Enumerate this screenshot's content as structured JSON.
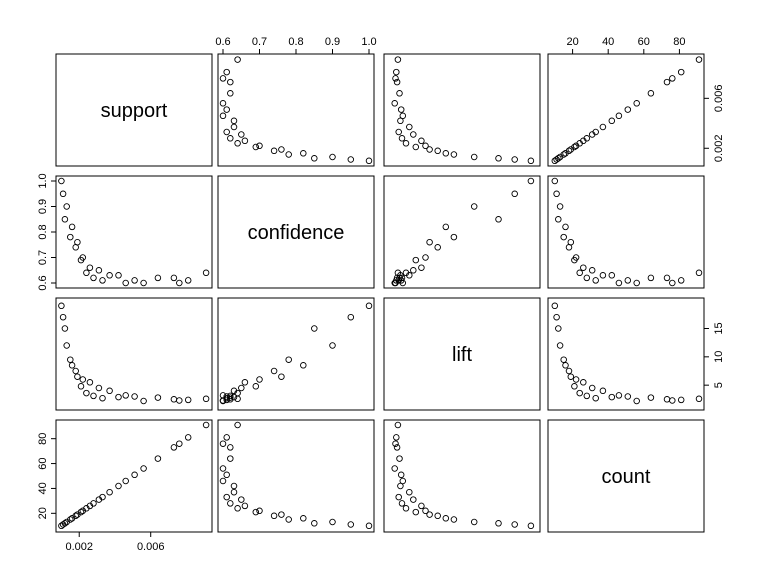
{
  "chart_data": {
    "type": "scatter",
    "layout": "scatterplot-matrix",
    "title": "",
    "variables": [
      {
        "name": "support",
        "range": [
          0.00098,
          0.00915
        ],
        "ticks": [
          0.002,
          0.006
        ],
        "tick_labels": [
          "0.002",
          "0.006"
        ],
        "axis_side": "bottom"
      },
      {
        "name": "confidence",
        "range": [
          0.6,
          1.0
        ],
        "ticks": [
          0.6,
          0.7,
          0.8,
          0.9,
          1.0
        ],
        "tick_labels": [
          "0.6",
          "0.7",
          "0.8",
          "0.9",
          "1.0"
        ],
        "axis_side": "top"
      },
      {
        "name": "lift",
        "range": [
          1.5,
          19.5
        ],
        "ticks": [
          5,
          10,
          15
        ],
        "tick_labels": [
          "5",
          "10",
          "15"
        ],
        "axis_side": "right"
      },
      {
        "name": "count",
        "range": [
          9,
          91
        ],
        "ticks": [
          20,
          40,
          60,
          80
        ],
        "tick_labels": [
          "20",
          "40",
          "60",
          "80"
        ],
        "axis_side": "top"
      }
    ],
    "left_axis": [
      {
        "row": 1,
        "ticks": [
          0.6,
          0.7,
          0.8,
          0.9,
          1.0
        ],
        "tick_labels": [
          "0.6",
          "0.7",
          "0.8",
          "0.9",
          "1.0"
        ]
      },
      {
        "row": 3,
        "ticks": [
          20,
          40,
          60,
          80
        ],
        "tick_labels": [
          "20",
          "40",
          "60",
          "80"
        ]
      }
    ],
    "right_axis": [
      {
        "row": 0,
        "ticks": [
          0.002,
          0.006
        ],
        "tick_labels": [
          "0.002",
          "0.006"
        ]
      },
      {
        "row": 2,
        "ticks": [
          5,
          10,
          15
        ],
        "tick_labels": [
          "5",
          "10",
          "15"
        ]
      }
    ],
    "points": {
      "support": [
        0.0073,
        0.0081,
        0.0091,
        0.0076,
        0.0064,
        0.0051,
        0.0046,
        0.0037,
        0.0031,
        0.0026,
        0.0022,
        0.0018,
        0.0015,
        0.0012,
        0.001,
        0.0011,
        0.0013,
        0.0016,
        0.0019,
        0.0021,
        0.0024,
        0.0028,
        0.0033,
        0.0042,
        0.0056
      ],
      "confidence": [
        0.62,
        0.61,
        0.64,
        0.6,
        0.62,
        0.61,
        0.6,
        0.63,
        0.65,
        0.66,
        0.7,
        0.74,
        0.78,
        0.85,
        1.0,
        0.95,
        0.9,
        0.82,
        0.76,
        0.69,
        0.64,
        0.62,
        0.61,
        0.63,
        0.6
      ],
      "lift": [
        2.5,
        2.4,
        2.6,
        2.3,
        2.8,
        3.0,
        3.2,
        4.0,
        4.5,
        5.5,
        6.0,
        7.5,
        9.5,
        15.0,
        19.0,
        17.0,
        12.0,
        8.5,
        6.5,
        4.8,
        3.6,
        3.1,
        2.7,
        2.9,
        2.2
      ],
      "count": [
        73,
        81,
        91,
        76,
        64,
        51,
        46,
        37,
        31,
        26,
        22,
        18,
        15,
        12,
        10,
        11,
        13,
        16,
        19,
        21,
        24,
        28,
        33,
        42,
        56
      ]
    }
  }
}
